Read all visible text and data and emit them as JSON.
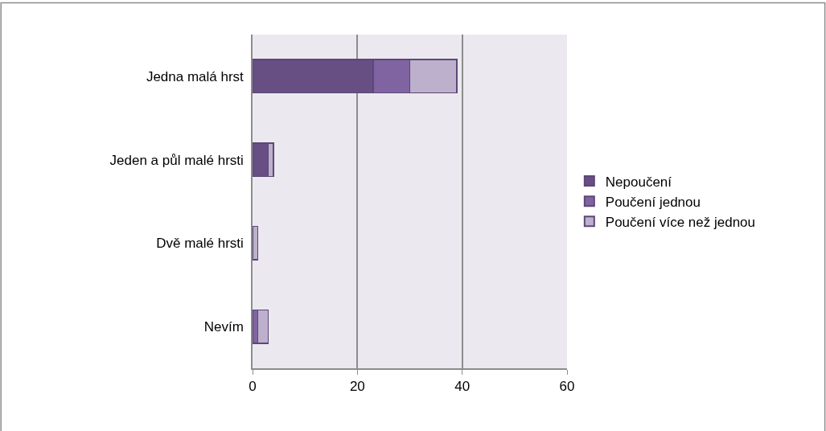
{
  "chart_data": {
    "type": "bar",
    "orientation": "horizontal",
    "stacked": true,
    "categories": [
      "Jedna malá hrst",
      "Jeden a půl malé hrsti",
      "Dvě malé hrsti",
      "Nevím"
    ],
    "series": [
      {
        "name": "Nepoučení",
        "color": "#674f84",
        "values": [
          23,
          3,
          0,
          0
        ]
      },
      {
        "name": "Poučení jednou",
        "color": "#8064a2",
        "values": [
          7,
          0,
          0,
          1
        ]
      },
      {
        "name": "Poučení více než jednou",
        "color": "#bcb0cc",
        "values": [
          9,
          1,
          1,
          2
        ]
      }
    ],
    "xlim": [
      0,
      60
    ],
    "xticks": [
      0,
      20,
      40,
      60
    ],
    "grid": "x",
    "legend": "right"
  }
}
